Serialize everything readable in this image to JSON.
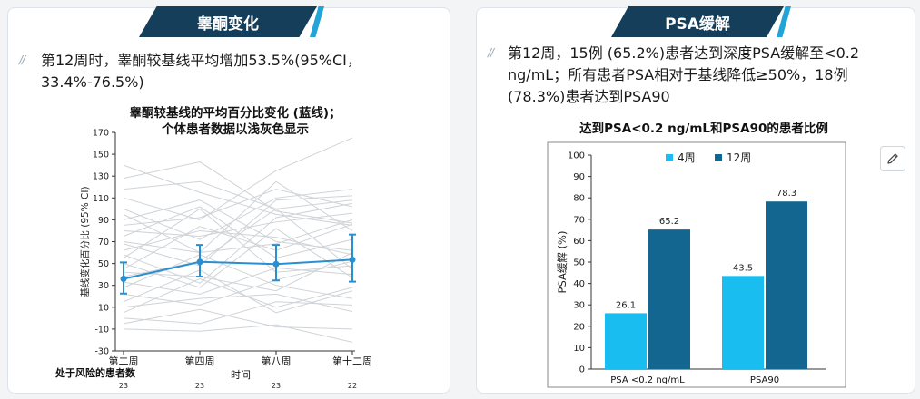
{
  "left": {
    "banner": "睾酮变化",
    "summary": "第12周时，睾酮较基线平均增加53.5%(95%CI，33.4%-76.5%)",
    "chart_title_line1": "睾酮较基线的平均百分比变化 (蓝线)；",
    "chart_title_line2": "个体患者数据以浅灰色显示"
  },
  "right": {
    "banner": "PSA缓解",
    "summary": "第12周，15例 (65.2%)患者达到深度PSA缓解至<0.2 ng/mL；所有患者PSA相对于基线降低≥50%，18例(78.3%)患者达到PSA90",
    "chart_title": "达到PSA<0.2 ng/mL和PSA90的患者比例",
    "edit_icon": "pencil-icon"
  },
  "chart_data": [
    {
      "type": "line",
      "title": "睾酮较基线的平均百分比变化 (蓝线)；个体患者数据以浅灰色显示",
      "xlabel": "时间",
      "ylabel": "基线变化百分比 (95% CI)",
      "ylim": [
        -30,
        170
      ],
      "yticks": [
        -30,
        -10,
        10,
        30,
        50,
        70,
        90,
        110,
        130,
        150,
        170
      ],
      "categories": [
        "第二周",
        "第四周",
        "第八周",
        "第十二周"
      ],
      "series": [
        {
          "values": [
            36,
            51.5,
            49.5,
            53.5
          ],
          "ci_low": [
            22.5,
            38,
            34.5,
            33.4
          ],
          "ci_high": [
            51,
            67,
            67,
            76.5
          ],
          "color": "#2a8fd0"
        }
      ],
      "individual_color": "#cfd3d7",
      "individual_series": [
        [
          140,
          115,
          95,
          85
        ],
        [
          128,
          143,
          98,
          87
        ],
        [
          118,
          125,
          100,
          108
        ],
        [
          110,
          90,
          135,
          165
        ],
        [
          100,
          72,
          110,
          118
        ],
        [
          95,
          60,
          125,
          80
        ],
        [
          90,
          108,
          70,
          62
        ],
        [
          85,
          92,
          118,
          102
        ],
        [
          80,
          75,
          88,
          96
        ],
        [
          75,
          102,
          55,
          72
        ],
        [
          70,
          60,
          68,
          90
        ],
        [
          68,
          48,
          108,
          112
        ],
        [
          62,
          80,
          74,
          58
        ],
        [
          58,
          32,
          92,
          105
        ],
        [
          55,
          100,
          42,
          48
        ],
        [
          50,
          28,
          82,
          37
        ],
        [
          45,
          84,
          62,
          86
        ],
        [
          42,
          38,
          25,
          60
        ],
        [
          38,
          52,
          100,
          45
        ],
        [
          33,
          22,
          46,
          40
        ],
        [
          28,
          58,
          30,
          18
        ],
        [
          22,
          12,
          35,
          52
        ],
        [
          15,
          44,
          5,
          25
        ],
        [
          10,
          18,
          22,
          6
        ],
        [
          5,
          36,
          10,
          28
        ],
        [
          0,
          -5,
          15,
          12
        ],
        [
          -5,
          8,
          -8,
          -10
        ],
        [
          -10,
          -12,
          -6,
          -22
        ]
      ],
      "risk_table": {
        "label": "处于风险的患者数",
        "counts": [
          "23",
          "23",
          "23",
          "22"
        ]
      }
    },
    {
      "type": "bar",
      "title": "达到PSA<0.2 ng/mL和PSA90的患者比例",
      "xlabel": "",
      "ylabel": "PSA缓解 (%)",
      "ylim": [
        0,
        100
      ],
      "yticks": [
        0,
        10,
        20,
        30,
        40,
        50,
        60,
        70,
        80,
        90,
        100
      ],
      "categories": [
        "PSA <0.2 ng/mL",
        "PSA90"
      ],
      "series": [
        {
          "name": "4周",
          "values": [
            26.1,
            43.5
          ],
          "color": "#19bdf0"
        },
        {
          "name": "12周",
          "values": [
            65.2,
            78.3
          ],
          "color": "#12668f"
        }
      ],
      "legend": "top-center"
    }
  ]
}
